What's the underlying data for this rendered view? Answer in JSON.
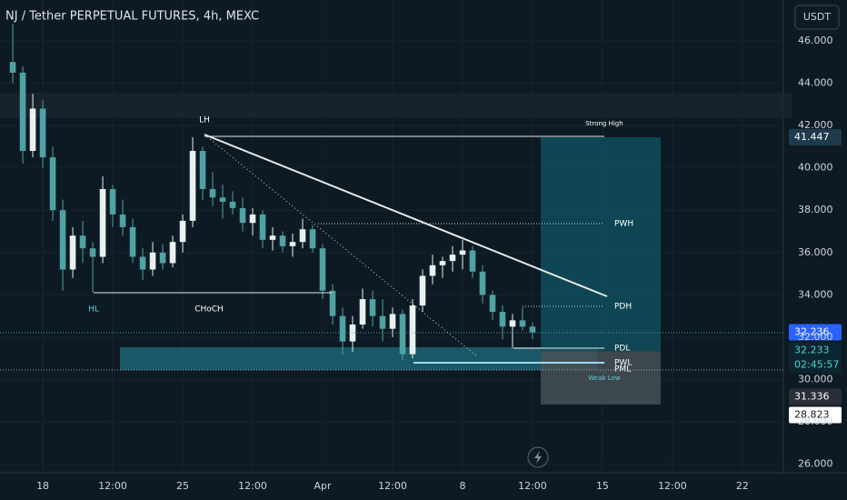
{
  "chart_data": {
    "type": "candlestick",
    "title": "NJ / Tether PERPETUAL FUTURES, 4h, MEXC",
    "currency": "USDT",
    "x": [
      -1.5,
      -1,
      -0.5,
      0,
      0.5,
      1,
      1.5,
      2,
      2.5,
      3,
      3.5,
      4,
      4.5,
      5,
      5.5,
      6,
      6.5,
      7,
      7.5,
      8,
      8.5,
      9,
      9.5,
      10,
      10.5,
      11,
      11.5,
      12,
      12.5,
      13,
      13.5,
      14,
      14.5,
      15,
      15.5,
      16,
      16.5,
      17,
      17.5,
      18,
      18.5,
      19,
      19.5,
      20,
      20.5,
      21,
      21.5,
      22,
      22.5,
      23,
      23.5,
      24,
      24.5
    ],
    "open": [
      45,
      44.5,
      40.8,
      42.8,
      40.5,
      38,
      35.2,
      36.8,
      36.2,
      35.8,
      39,
      37.8,
      37.2,
      35.8,
      35.2,
      36,
      35.5,
      36.5,
      37.5,
      40.8,
      39,
      38.6,
      38.4,
      38.1,
      37.4,
      37.8,
      36.6,
      36.8,
      36.3,
      36.5,
      37.1,
      36.2,
      34.2,
      33,
      31.8,
      32.6,
      33.8,
      33,
      32.4,
      33.1,
      31.2,
      33.5,
      34.9,
      35.4,
      35.6,
      35.9,
      36.1,
      35.1,
      34,
      33.2,
      32.5,
      32.8,
      32.5
    ],
    "high": [
      46.8,
      44.8,
      43.5,
      43.2,
      41,
      38.5,
      37.2,
      37.5,
      36.5,
      39.6,
      39.2,
      38.5,
      37.6,
      36.2,
      36.5,
      36.4,
      36.8,
      37.8,
      41.45,
      41,
      39.8,
      39.2,
      38.9,
      38.6,
      38.1,
      38,
      37.2,
      37,
      36.9,
      37.6,
      37.3,
      36.4,
      34.5,
      33.4,
      33,
      34.3,
      34.2,
      33.8,
      33.4,
      33.3,
      33.8,
      35.2,
      35.9,
      35.8,
      36.3,
      36.6,
      36.3,
      35.4,
      34.2,
      33.5,
      33.1,
      33.4,
      32.7
    ],
    "low": [
      44,
      40.2,
      40.5,
      40,
      37.5,
      34.2,
      34.8,
      35.5,
      34.1,
      35.5,
      37.2,
      36.8,
      35.5,
      34.7,
      34.9,
      35.2,
      35.3,
      36,
      37.2,
      38.5,
      38.2,
      37.6,
      37.8,
      37,
      36.8,
      36.2,
      36.1,
      36,
      35.8,
      36.2,
      36,
      33.8,
      32.6,
      31.2,
      31.3,
      32.4,
      32.5,
      31.8,
      32,
      30.9,
      31,
      33.2,
      34.5,
      34.8,
      35.1,
      35.2,
      34.8,
      33.6,
      32.8,
      31.9,
      31.5,
      32.3,
      31.9
    ],
    "close": [
      44.5,
      40.8,
      42.8,
      40.5,
      38,
      35.2,
      36.8,
      36.2,
      35.8,
      39,
      37.8,
      37.2,
      35.8,
      35.2,
      36,
      35.5,
      36.5,
      37.5,
      40.8,
      39,
      38.6,
      38.4,
      38.1,
      37.4,
      37.8,
      36.6,
      36.8,
      36.3,
      36.5,
      37.1,
      36.2,
      34.2,
      33,
      31.8,
      32.6,
      33.8,
      33,
      32.4,
      33.1,
      31.2,
      33.5,
      34.9,
      35.4,
      35.6,
      35.9,
      36.1,
      35.1,
      34,
      33.2,
      32.5,
      32.8,
      32.5,
      32.23
    ],
    "up_color": "#e8f1f0",
    "down_color": "#4fa3a5",
    "xlim": [
      -2.14,
      37.05
    ],
    "ylim": [
      25.6,
      47.93
    ],
    "xticks": [
      {
        "value": 0,
        "label": "18"
      },
      {
        "value": 3.5,
        "label": "12:00"
      },
      {
        "value": 7,
        "label": "25"
      },
      {
        "value": 10.5,
        "label": "12:00"
      },
      {
        "value": 14,
        "label": "Apr"
      },
      {
        "value": 17.5,
        "label": "12:00"
      },
      {
        "value": 21,
        "label": "8"
      },
      {
        "value": 24.5,
        "label": "12:00"
      },
      {
        "value": 28,
        "label": "15"
      },
      {
        "value": 31.5,
        "label": "12:00"
      },
      {
        "value": 35,
        "label": "22"
      }
    ],
    "yticks": [
      {
        "value": 26,
        "label": "26.000"
      },
      {
        "value": 28,
        "label": "28.000"
      },
      {
        "value": 30,
        "label": "30.000"
      },
      {
        "value": 32,
        "label": "32.000"
      },
      {
        "value": 34,
        "label": "34.000"
      },
      {
        "value": 36,
        "label": "36.000"
      },
      {
        "value": 38,
        "label": "38.000"
      },
      {
        "value": 40,
        "label": "40.000"
      },
      {
        "value": 42,
        "label": "42.000"
      },
      {
        "value": 44,
        "label": "44.000"
      },
      {
        "value": 46,
        "label": "46.000"
      }
    ],
    "price_badges": [
      {
        "value": 41.447,
        "color": "#1e3a4c"
      },
      {
        "value": 32.236,
        "color": "#2962ff"
      },
      {
        "value": 32.233,
        "color": "#0c2530"
      },
      {
        "value": 31.336,
        "color": "#2a2e39"
      },
      {
        "value": 28.823,
        "color": "#ffffff"
      }
    ],
    "countdown": "02:45:57",
    "target": 41.447,
    "entry": 31.336,
    "stop": 28.823,
    "annotations": [
      "LH",
      "HL",
      "CHoCH",
      "Strong High",
      "PWH",
      "PDH",
      "PDL",
      "PWL",
      "PML",
      "Weak Low"
    ]
  }
}
